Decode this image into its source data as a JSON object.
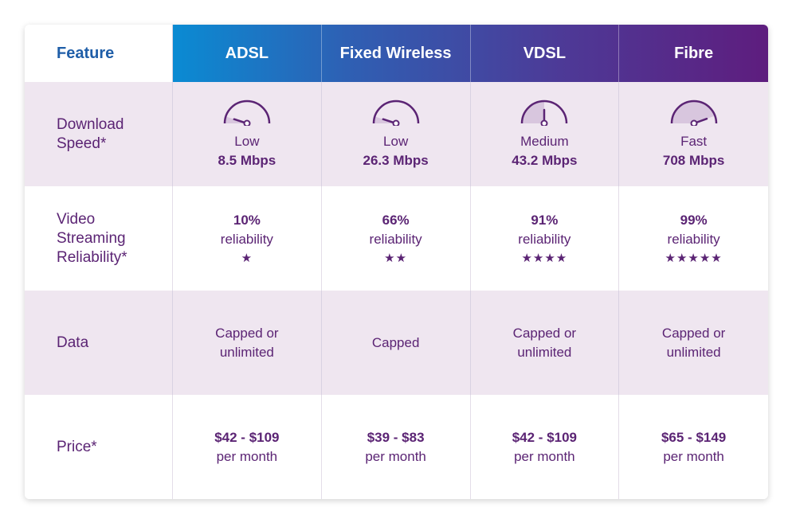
{
  "header": {
    "feature": "Feature",
    "columns": [
      "ADSL",
      "Fixed Wireless",
      "VDSL",
      "Fibre"
    ]
  },
  "rows": {
    "download": {
      "label": "Download\nSpeed*",
      "cells": [
        {
          "level": "Low",
          "value": "8.5 Mbps",
          "gauge": "low"
        },
        {
          "level": "Low",
          "value": "26.3 Mbps",
          "gauge": "low"
        },
        {
          "level": "Medium",
          "value": "43.2 Mbps",
          "gauge": "medium"
        },
        {
          "level": "Fast",
          "value": "708 Mbps",
          "gauge": "fast"
        }
      ]
    },
    "streaming": {
      "label": "Video\nStreaming\nReliability*",
      "cells": [
        {
          "percent": "10%",
          "text": "reliability",
          "stars": "★"
        },
        {
          "percent": "66%",
          "text": "reliability",
          "stars": "★★"
        },
        {
          "percent": "91%",
          "text": "reliability",
          "stars": "★★★★"
        },
        {
          "percent": "99%",
          "text": "reliability",
          "stars": "★★★★★"
        }
      ]
    },
    "data": {
      "label": "Data",
      "cells": [
        "Capped or\nunlimited",
        "Capped",
        "Capped or\nunlimited",
        "Capped or\nunlimited"
      ]
    },
    "price": {
      "label": "Price*",
      "cells": [
        {
          "amount": "$42 - $109",
          "period": "per month"
        },
        {
          "amount": "$39 - $83",
          "period": "per month"
        },
        {
          "amount": "$42 - $109",
          "period": "per month"
        },
        {
          "amount": "$65 - $149",
          "period": "per month"
        }
      ]
    }
  },
  "colors": {
    "accent": "#5b2474",
    "feature_head": "#1f5ea8",
    "shade": "#efe6f0",
    "gauge_fill": "#d8c6de"
  }
}
